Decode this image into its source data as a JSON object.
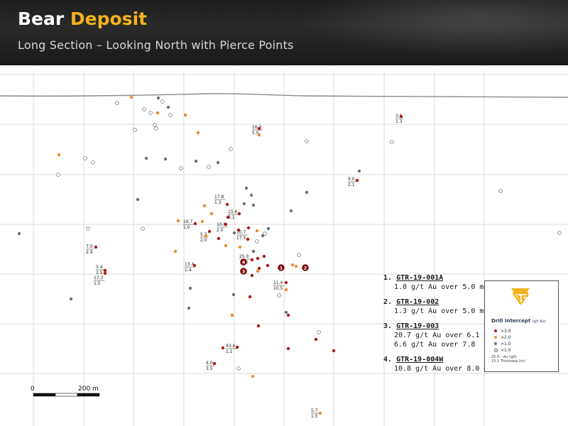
{
  "header": {
    "title_part1": "Bear ",
    "title_part2": "Deposit",
    "subtitle": "Long Section – Looking North with Pierce Points"
  },
  "colors": {
    "accent": "#f5b21b",
    "grade_gt3": "#b01919",
    "grade_gt2": "#f08a2e",
    "grade_gt1": "#707070",
    "grade_lt1": "#ffffff",
    "marker": "#7a0d0d"
  },
  "drill_holes": [
    {
      "number": "1.",
      "hole": "GTR-19-001A",
      "results": [
        "1.0 g/t Au over 5.0 m"
      ]
    },
    {
      "number": "2.",
      "hole": "GTR-19-002",
      "results": [
        "1.3 g/t Au over 5.0 m"
      ]
    },
    {
      "number": "3.",
      "hole": "GTR-19-003",
      "results": [
        "20.7 g/t Au over 6.1 m",
        "6.6 g/t Au over 7.8"
      ]
    },
    {
      "number": "4.",
      "hole": "GTR-19-004W",
      "results": [
        "10.8 g/t Au over 8.0 m"
      ]
    }
  ],
  "legend": {
    "title": "Drill Intercept",
    "unit": "(g/t Au)",
    "items": [
      {
        "label": ">3.0",
        "color": "#b01919"
      },
      {
        "label": ">2.0",
        "color": "#f08a2e"
      },
      {
        "label": ">1.0",
        "color": "#707070"
      },
      {
        "label": "<1.0",
        "color": "#ffffff"
      }
    ],
    "key_line1": "25.0 – Au (g/t)",
    "key_line2": "15.1   Thickness (m)"
  },
  "scale_bar": {
    "start": "0",
    "end": "200 m"
  },
  "markers": [
    "1",
    "2",
    "3",
    "4"
  ],
  "labels": [
    {
      "au": "3.5",
      "th": "1.3"
    },
    {
      "au": "16.3",
      "th": "5.0"
    },
    {
      "au": "9.0",
      "th": "2.1"
    },
    {
      "au": "17.8",
      "th": "1.3"
    },
    {
      "au": "15.6",
      "th": "3.1"
    },
    {
      "au": "16.7",
      "th": "1.0"
    },
    {
      "au": "10.6",
      "th": "2.0"
    },
    {
      "au": "10.7",
      "th": "17.5"
    },
    {
      "au": "5.7",
      "th": "2.0"
    },
    {
      "au": "7.0",
      "th": "2.9"
    },
    {
      "au": "25.0",
      "th": "15.1"
    },
    {
      "au": "13.4",
      "th": "1.4"
    },
    {
      "au": "5.4",
      "th": "2.5"
    },
    {
      "au": "17.3",
      "th": "1.5"
    },
    {
      "au": "11.4",
      "th": "10.5"
    },
    {
      "au": "43.6",
      "th": "1.1"
    },
    {
      "au": "6.0",
      "th": "3.5"
    },
    {
      "au": "5.7",
      "th": "1.5"
    }
  ]
}
